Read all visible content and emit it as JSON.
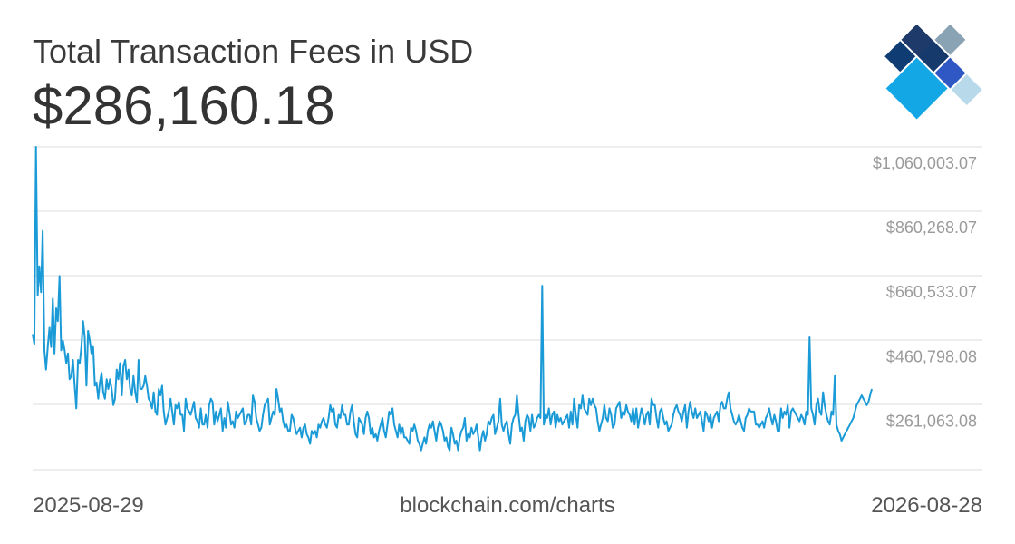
{
  "header": {
    "title": "Total Transaction Fees in USD",
    "value": "$286,160.18"
  },
  "logo": {
    "icon": "blockchain-logo-icon"
  },
  "footer": {
    "start_date": "2025-08-29",
    "source": "blockchain.com/charts",
    "end_date": "2026-08-28"
  },
  "colors": {
    "line": "#1a9ad6",
    "grid": "#dddddd",
    "tick_text": "#9a9a9a",
    "text": "#333333"
  },
  "chart_data": {
    "type": "line",
    "title": "Total Transaction Fees in USD",
    "x_start": "2025-08-29",
    "x_end": "2026-08-28",
    "y_ticks": [
      {
        "value": 261063.08,
        "label": "$261,063.08"
      },
      {
        "value": 460798.08,
        "label": "$460,798.08"
      },
      {
        "value": 660533.07,
        "label": "$660,533.07"
      },
      {
        "value": 860268.07,
        "label": "$860,268.07"
      },
      {
        "value": 1060003.07,
        "label": "$1,060,003.07"
      }
    ],
    "ylim": [
      60000,
      1060003.07
    ],
    "grid": true,
    "series": [
      {
        "values": [
          480000,
          450000,
          1060000,
          600000,
          690000,
          610000,
          800000,
          430000,
          370000,
          440000,
          500000,
          440000,
          590000,
          420000,
          560000,
          520000,
          660000,
          430000,
          460000,
          430000,
          390000,
          420000,
          340000,
          350000,
          400000,
          320000,
          250000,
          400000,
          390000,
          440000,
          520000,
          470000,
          320000,
          490000,
          460000,
          420000,
          440000,
          320000,
          330000,
          280000,
          330000,
          360000,
          300000,
          280000,
          340000,
          310000,
          340000,
          310000,
          260000,
          280000,
          370000,
          340000,
          390000,
          290000,
          380000,
          400000,
          340000,
          370000,
          310000,
          290000,
          350000,
          300000,
          270000,
          400000,
          310000,
          310000,
          320000,
          350000,
          320000,
          280000,
          270000,
          250000,
          300000,
          240000,
          230000,
          310000,
          290000,
          320000,
          240000,
          200000,
          220000,
          240000,
          280000,
          240000,
          200000,
          260000,
          250000,
          270000,
          230000,
          230000,
          180000,
          280000,
          250000,
          240000,
          230000,
          250000,
          270000,
          220000,
          210000,
          190000,
          250000,
          200000,
          200000,
          230000,
          190000,
          260000,
          280000,
          270000,
          200000,
          240000,
          210000,
          230000,
          250000,
          180000,
          220000,
          190000,
          270000,
          240000,
          200000,
          210000,
          190000,
          240000,
          220000,
          230000,
          240000,
          250000,
          200000,
          210000,
          230000,
          230000,
          200000,
          290000,
          270000,
          220000,
          200000,
          180000,
          190000,
          230000,
          260000,
          270000,
          280000,
          200000,
          220000,
          240000,
          230000,
          310000,
          280000,
          240000,
          250000,
          210000,
          190000,
          200000,
          180000,
          180000,
          230000,
          220000,
          190000,
          170000,
          180000,
          190000,
          160000,
          190000,
          200000,
          170000,
          160000,
          140000,
          180000,
          170000,
          180000,
          160000,
          200000,
          190000,
          210000,
          220000,
          200000,
          190000,
          220000,
          260000,
          240000,
          250000,
          200000,
          190000,
          230000,
          220000,
          260000,
          230000,
          230000,
          200000,
          200000,
          240000,
          260000,
          210000,
          170000,
          160000,
          220000,
          210000,
          200000,
          170000,
          220000,
          240000,
          220000,
          170000,
          190000,
          160000,
          170000,
          150000,
          180000,
          200000,
          220000,
          180000,
          160000,
          200000,
          240000,
          230000,
          250000,
          200000,
          180000,
          160000,
          200000,
          170000,
          190000,
          160000,
          160000,
          150000,
          140000,
          190000,
          180000,
          200000,
          180000,
          150000,
          140000,
          120000,
          140000,
          160000,
          140000,
          180000,
          200000,
          190000,
          210000,
          180000,
          150000,
          190000,
          210000,
          200000,
          180000,
          150000,
          160000,
          130000,
          120000,
          190000,
          170000,
          140000,
          150000,
          120000,
          160000,
          180000,
          190000,
          220000,
          150000,
          170000,
          160000,
          190000,
          170000,
          180000,
          200000,
          160000,
          120000,
          160000,
          180000,
          150000,
          170000,
          210000,
          200000,
          220000,
          230000,
          170000,
          190000,
          210000,
          280000,
          200000,
          180000,
          200000,
          210000,
          170000,
          140000,
          200000,
          220000,
          230000,
          290000,
          230000,
          180000,
          190000,
          150000,
          210000,
          230000,
          220000,
          180000,
          230000,
          190000,
          200000,
          220000,
          230000,
          220000,
          630000,
          200000,
          230000,
          220000,
          250000,
          200000,
          230000,
          240000,
          190000,
          230000,
          210000,
          220000,
          200000,
          210000,
          220000,
          230000,
          190000,
          240000,
          200000,
          280000,
          230000,
          190000,
          260000,
          250000,
          290000,
          250000,
          240000,
          230000,
          280000,
          260000,
          280000,
          260000,
          250000,
          210000,
          180000,
          200000,
          220000,
          260000,
          220000,
          210000,
          250000,
          230000,
          190000,
          200000,
          250000,
          260000,
          270000,
          220000,
          240000,
          230000,
          260000,
          240000,
          230000,
          210000,
          250000,
          200000,
          250000,
          190000,
          220000,
          250000,
          230000,
          200000,
          230000,
          240000,
          200000,
          280000,
          260000,
          260000,
          220000,
          190000,
          240000,
          250000,
          220000,
          200000,
          210000,
          180000,
          190000,
          200000,
          230000,
          250000,
          260000,
          240000,
          230000,
          210000,
          240000,
          260000,
          190000,
          240000,
          270000,
          240000,
          220000,
          250000,
          220000,
          230000,
          240000,
          210000,
          180000,
          240000,
          230000,
          210000,
          230000,
          190000,
          220000,
          230000,
          240000,
          210000,
          260000,
          270000,
          250000,
          250000,
          280000,
          300000,
          250000,
          230000,
          210000,
          200000,
          210000,
          230000,
          210000,
          190000,
          180000,
          220000,
          230000,
          250000,
          240000,
          240000,
          240000,
          200000,
          200000,
          190000,
          200000,
          210000,
          190000,
          220000,
          230000,
          250000,
          220000,
          200000,
          230000,
          210000,
          180000,
          180000,
          250000,
          220000,
          240000,
          230000,
          260000,
          190000,
          240000,
          250000,
          240000,
          230000,
          220000,
          210000,
          230000,
          220000,
          200000,
          240000,
          230000,
          470000,
          250000,
          230000,
          200000,
          260000,
          280000,
          240000,
          230000,
          300000,
          260000,
          230000,
          210000,
          200000,
          240000,
          230000,
          350000,
          200000,
          180000,
          170000,
          150000,
          160000,
          170000,
          180000,
          190000,
          200000,
          210000,
          220000,
          240000,
          260000,
          270000,
          280000,
          290000,
          280000,
          270000,
          260000,
          270000,
          290000,
          310000
        ],
        "note": ""
      }
    ]
  }
}
